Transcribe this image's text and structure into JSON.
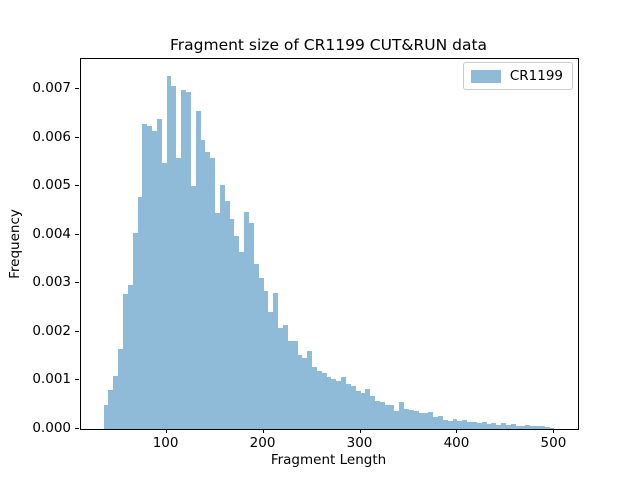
{
  "title": "Fragment size of CR1199 CUT&RUN data",
  "axes": {
    "xlabel": "Fragment Length",
    "ylabel": "Frequency",
    "x_tick_labels": [
      "100",
      "200",
      "300",
      "400",
      "500"
    ],
    "y_tick_labels": [
      "0.000",
      "0.001",
      "0.002",
      "0.003",
      "0.004",
      "0.005",
      "0.006",
      "0.007"
    ]
  },
  "legend": {
    "entries": [
      {
        "label": "CR1199",
        "color": "#8fbbd9"
      }
    ],
    "position": "upper right"
  },
  "colors": {
    "bar_fill": "#8fbbd9",
    "spine": "#000000",
    "background": "#ffffff",
    "legend_border": "#cccccc"
  },
  "chart_data": {
    "type": "bar",
    "subtype": "histogram",
    "title": "Fragment size of CR1199 CUT&RUN data",
    "xlabel": "Fragment Length",
    "ylabel": "Frequency",
    "series_name": "CR1199",
    "grid": false,
    "legend_position": "upper right",
    "bin_start": 35,
    "bin_width": 5,
    "xlim": [
      11.7,
      524.3
    ],
    "ylim": [
      0,
      0.007618
    ],
    "x_ticks": [
      100,
      200,
      300,
      400,
      500
    ],
    "y_ticks": [
      0.0,
      0.001,
      0.002,
      0.003,
      0.004,
      0.005,
      0.006,
      0.007
    ],
    "frequencies": [
      0.0005,
      0.0008,
      0.0011,
      0.00165,
      0.00278,
      0.00297,
      0.00404,
      0.00478,
      0.00628,
      0.00623,
      0.00614,
      0.00638,
      0.00548,
      0.00727,
      0.00706,
      0.00557,
      0.00697,
      0.00693,
      0.005,
      0.00655,
      0.00595,
      0.0057,
      0.00558,
      0.00444,
      0.00502,
      0.0047,
      0.00432,
      0.00398,
      0.00364,
      0.00446,
      0.00425,
      0.0034,
      0.0031,
      0.00284,
      0.0024,
      0.0028,
      0.00209,
      0.00215,
      0.00181,
      0.00182,
      0.00153,
      0.00146,
      0.00161,
      0.00127,
      0.00119,
      0.00115,
      0.00108,
      0.00104,
      0.00098,
      0.00108,
      0.00093,
      0.00088,
      0.00079,
      0.00074,
      0.00083,
      0.00069,
      0.00057,
      0.00056,
      0.0005,
      0.00049,
      0.00038,
      0.00055,
      0.00042,
      0.00039,
      0.00037,
      0.00034,
      0.00033,
      0.00036,
      0.00025,
      0.00026,
      0.00019,
      0.00017,
      0.00021,
      0.00017,
      0.00019,
      0.00014,
      0.00014,
      0.00012,
      0.00015,
      0.0001,
      0.00012,
      9e-05,
      0.00012,
      8e-05,
      0.0001,
      7e-05,
      7e-05,
      9e-05,
      6e-05,
      5.5e-05,
      7e-05,
      3.5e-05,
      3e-05
    ]
  }
}
